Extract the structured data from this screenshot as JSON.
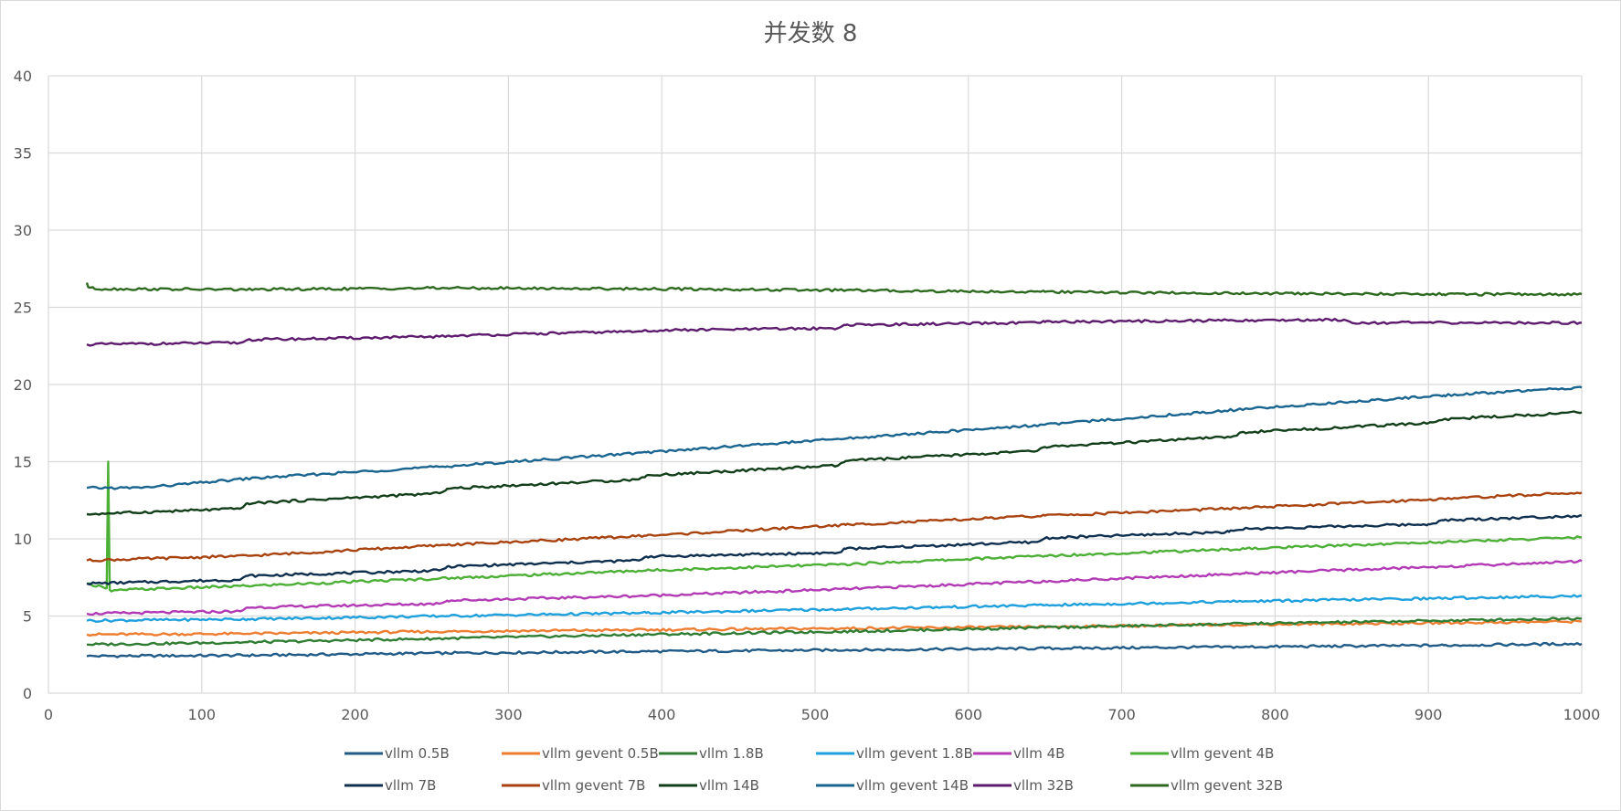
{
  "chart_data": {
    "type": "line",
    "title": "并发数 8",
    "xlim": [
      0,
      1000
    ],
    "ylim": [
      0,
      40
    ],
    "x_ticks": [
      "0",
      "100",
      "200",
      "300",
      "400",
      "500",
      "600",
      "700",
      "800",
      "900",
      "1000"
    ],
    "y_ticks": [
      "0",
      "5",
      "10",
      "15",
      "20",
      "25",
      "30",
      "35",
      "40"
    ],
    "grid": true,
    "legend_position": "bottom",
    "series": [
      {
        "name": "vllm 0.5B",
        "color": "#1f5b86",
        "x": [
          25,
          130,
          260,
          390,
          520,
          650,
          780,
          910,
          1000
        ],
        "values": [
          2.4,
          2.45,
          2.6,
          2.7,
          2.8,
          2.9,
          3.0,
          3.1,
          3.2
        ]
      },
      {
        "name": "vllm gevent 0.5B",
        "color": "#ed7d31",
        "x": [
          25,
          130,
          260,
          390,
          520,
          650,
          780,
          910,
          1000
        ],
        "values": [
          3.8,
          3.85,
          4.0,
          4.1,
          4.2,
          4.3,
          4.45,
          4.55,
          4.65
        ]
      },
      {
        "name": "vllm 1.8B",
        "color": "#2e7d32",
        "x": [
          25,
          130,
          260,
          390,
          520,
          650,
          780,
          910,
          1000
        ],
        "values": [
          3.15,
          3.3,
          3.55,
          3.8,
          4.0,
          4.25,
          4.5,
          4.7,
          4.85
        ]
      },
      {
        "name": "vllm gevent 1.8B",
        "color": "#1ea0dc",
        "x": [
          25,
          130,
          260,
          390,
          520,
          650,
          780,
          910,
          1000
        ],
        "values": [
          4.7,
          4.8,
          5.0,
          5.2,
          5.45,
          5.7,
          5.95,
          6.15,
          6.3
        ]
      },
      {
        "name": "vllm 4B",
        "color": "#b23ab5",
        "x": [
          25,
          125,
          130,
          255,
          260,
          385,
          520,
          650,
          780,
          910,
          1000
        ],
        "values": [
          5.15,
          5.3,
          5.55,
          5.8,
          6.0,
          6.3,
          6.75,
          7.25,
          7.75,
          8.2,
          8.55
        ]
      },
      {
        "name": "vllm gevent 4B",
        "color": "#4caf36",
        "x": [
          25,
          35,
          38,
          39,
          40,
          41,
          50,
          130,
          260,
          390,
          520,
          650,
          780,
          910,
          1000
        ],
        "values": [
          7.1,
          6.9,
          6.8,
          15.0,
          6.7,
          6.6,
          6.7,
          6.95,
          7.45,
          7.95,
          8.35,
          8.9,
          9.35,
          9.8,
          10.1
        ]
      },
      {
        "name": "vllm 7B",
        "color": "#0f2f4f",
        "x": [
          25,
          125,
          130,
          255,
          260,
          385,
          390,
          515,
          520,
          645,
          650,
          770,
          780,
          900,
          910,
          1000
        ],
        "values": [
          7.1,
          7.35,
          7.6,
          7.95,
          8.2,
          8.6,
          8.85,
          9.1,
          9.35,
          9.8,
          10.05,
          10.45,
          10.65,
          10.95,
          11.2,
          11.5
        ]
      },
      {
        "name": "vllm gevent 7B",
        "color": "#a8420f",
        "x": [
          25,
          130,
          260,
          390,
          520,
          650,
          780,
          910,
          1000
        ],
        "values": [
          8.6,
          8.9,
          9.6,
          10.2,
          10.9,
          11.5,
          12.0,
          12.6,
          13.0
        ]
      },
      {
        "name": "vllm 14B",
        "color": "#123f1a",
        "x": [
          25,
          125,
          130,
          255,
          260,
          385,
          390,
          515,
          520,
          645,
          650,
          770,
          780,
          900,
          910,
          1000
        ],
        "values": [
          11.6,
          11.95,
          12.3,
          12.95,
          13.25,
          13.85,
          14.1,
          14.75,
          15.05,
          15.7,
          15.95,
          16.6,
          16.9,
          17.5,
          17.75,
          18.2
        ]
      },
      {
        "name": "vllm gevent 14B",
        "color": "#1a6590",
        "x": [
          25,
          60,
          130,
          260,
          390,
          520,
          650,
          780,
          910,
          1000
        ],
        "values": [
          13.3,
          13.3,
          13.9,
          14.7,
          15.6,
          16.5,
          17.4,
          18.4,
          19.3,
          19.8
        ]
      },
      {
        "name": "vllm 32B",
        "color": "#5e1b6e",
        "x": [
          25,
          125,
          130,
          255,
          260,
          385,
          390,
          515,
          520,
          645,
          650,
          770,
          780,
          845,
          850,
          1000
        ],
        "values": [
          22.6,
          22.7,
          22.9,
          23.1,
          23.15,
          23.45,
          23.5,
          23.65,
          23.85,
          24.0,
          24.05,
          24.15,
          24.15,
          24.2,
          24.0,
          24.0
        ]
      },
      {
        "name": "vllm gevent 32B",
        "color": "#2d6a1f",
        "x": [
          25,
          26,
          30,
          130,
          260,
          390,
          520,
          650,
          780,
          910,
          1000
        ],
        "values": [
          26.6,
          26.3,
          26.2,
          26.15,
          26.25,
          26.2,
          26.1,
          26.0,
          25.9,
          25.85,
          25.85
        ]
      }
    ]
  }
}
